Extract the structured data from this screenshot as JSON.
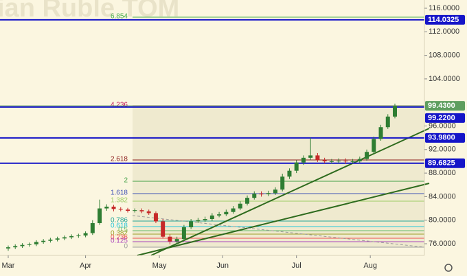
{
  "chart_data": {
    "type": "candlestick",
    "watermark": "ian Ruble TOM",
    "x": [
      0,
      2,
      4,
      6,
      8,
      10,
      12,
      14,
      16,
      18,
      20,
      22,
      24,
      26,
      28,
      30,
      32,
      34,
      36,
      38,
      40,
      42,
      44,
      46,
      48,
      50,
      52,
      54,
      56,
      58,
      60,
      62,
      64,
      66,
      68,
      70,
      72,
      74,
      76,
      78,
      80,
      82,
      84,
      86,
      88,
      90,
      92,
      94,
      96,
      98,
      100,
      102,
      104,
      106,
      108,
      110
    ],
    "open": [
      75.2,
      75.4,
      75.6,
      75.8,
      75.9,
      76.3,
      76.5,
      76.7,
      76.9,
      77.1,
      77.3,
      77.4,
      77.8,
      79.5,
      82.0,
      82.3,
      81.9,
      81.8,
      81.6,
      81.7,
      81.5,
      81.2,
      79.8,
      77.2,
      76.4,
      76.8,
      78.8,
      79.8,
      80.0,
      80.2,
      80.8,
      81.0,
      81.4,
      82.0,
      82.8,
      83.8,
      84.5,
      84.4,
      84.6,
      85.2,
      87.4,
      88.4,
      89.8,
      90.6,
      91.0,
      90.2,
      90.0,
      90.0,
      90.1,
      90.0,
      90.0,
      90.4,
      91.6,
      93.8,
      95.8,
      97.6
    ],
    "close": [
      75.4,
      75.6,
      75.8,
      75.9,
      76.3,
      76.5,
      76.7,
      76.9,
      77.1,
      77.3,
      77.4,
      77.8,
      79.5,
      82.0,
      82.3,
      81.9,
      81.8,
      81.6,
      81.7,
      81.5,
      81.2,
      79.8,
      77.2,
      76.4,
      76.8,
      78.8,
      79.8,
      80.0,
      80.2,
      80.8,
      81.0,
      81.4,
      82.0,
      82.8,
      83.8,
      84.5,
      84.4,
      84.6,
      85.2,
      87.4,
      88.4,
      89.8,
      90.6,
      91.0,
      90.2,
      90.0,
      90.0,
      90.1,
      90.0,
      90.0,
      90.4,
      91.6,
      93.8,
      95.8,
      97.6,
      99.4
    ],
    "high": [
      75.7,
      75.9,
      76.1,
      76.2,
      76.6,
      76.8,
      77.0,
      77.2,
      77.4,
      77.6,
      77.7,
      78.1,
      80.0,
      83.5,
      82.7,
      82.6,
      82.2,
      82.1,
      82.0,
      82.0,
      81.8,
      81.5,
      80.2,
      77.6,
      77.2,
      79.2,
      80.2,
      80.4,
      80.6,
      81.2,
      81.4,
      81.8,
      82.4,
      83.2,
      84.2,
      84.9,
      84.9,
      85.0,
      85.6,
      87.9,
      88.8,
      90.2,
      91.0,
      94.0,
      91.4,
      90.6,
      90.4,
      90.5,
      90.5,
      90.4,
      90.8,
      92.0,
      94.2,
      96.2,
      98.0,
      99.8
    ],
    "low": [
      74.8,
      75.1,
      75.3,
      75.5,
      75.6,
      76.0,
      76.2,
      76.4,
      76.6,
      76.8,
      77.0,
      77.1,
      77.5,
      79.2,
      81.6,
      81.5,
      81.5,
      81.3,
      81.3,
      81.2,
      80.9,
      79.5,
      76.9,
      75.9,
      76.0,
      76.5,
      78.5,
      79.5,
      79.7,
      79.9,
      80.5,
      80.7,
      81.1,
      81.7,
      82.5,
      83.5,
      84.0,
      84.1,
      84.3,
      84.9,
      87.0,
      88.0,
      89.4,
      90.2,
      89.9,
      89.7,
      89.6,
      89.7,
      89.6,
      89.6,
      89.7,
      90.1,
      91.3,
      93.5,
      95.5,
      97.3
    ],
    "up_color": "#2e7d32",
    "down_color": "#c62828",
    "xlim": [
      -2.34,
      118.4
    ],
    "ylim": [
      74.02,
      117.4
    ],
    "xticks": [
      {
        "value": 0,
        "label": "Mar"
      },
      {
        "value": 22,
        "label": "Apr"
      },
      {
        "value": 43,
        "label": "May"
      },
      {
        "value": 61,
        "label": "Jun"
      },
      {
        "value": 82,
        "label": "Jul"
      },
      {
        "value": 103,
        "label": "Aug"
      }
    ],
    "yticks": [
      {
        "value": 76,
        "label": "76.0000"
      },
      {
        "value": 80,
        "label": "80.0000"
      },
      {
        "value": 84,
        "label": "84.0000"
      },
      {
        "value": 88,
        "label": "88.0000"
      },
      {
        "value": 92,
        "label": "92.0000"
      },
      {
        "value": 96,
        "label": "96.0000"
      },
      {
        "value": 104,
        "label": "104.0000"
      },
      {
        "value": 108,
        "label": "108.0000"
      },
      {
        "value": 112,
        "label": "112.0000"
      },
      {
        "value": 116,
        "label": "116.0000"
      }
    ],
    "price_lines": [
      {
        "value": 114.0325,
        "label": "114.0325",
        "color": "#1515c8"
      },
      {
        "value": 99.43,
        "label": "99.4300",
        "color": "#5e9e5e"
      },
      {
        "value": 99.22,
        "label": "99.2200",
        "color": "#1515c8"
      },
      {
        "value": 93.98,
        "label": "93.9800",
        "color": "#1515c8"
      },
      {
        "value": 89.6825,
        "label": "89.6825",
        "color": "#1515c8"
      }
    ],
    "fib_levels": [
      {
        "label": "6.854",
        "value": 114.48,
        "color": "#4caf50"
      },
      {
        "label": "4.236",
        "value": 99.44,
        "color": "#c2185b"
      },
      {
        "label": "2.618",
        "value": 90.23,
        "color": "#8b1a1a"
      },
      {
        "label": "2",
        "value": 86.62,
        "color": "#43a047"
      },
      {
        "label": "1.618",
        "value": 84.51,
        "color": "#3f51b5"
      },
      {
        "label": "1.382",
        "value": 83.23,
        "color": "#9ccc65"
      },
      {
        "label": "0.786",
        "value": 79.85,
        "color": "#26a69a"
      },
      {
        "label": "0.618",
        "value": 78.92,
        "color": "#26c6da"
      },
      {
        "label": "0.5",
        "value": 78.22,
        "color": "#66bb6a"
      },
      {
        "label": "0.382",
        "value": 77.63,
        "color": "#9e9d24"
      },
      {
        "label": "0.236",
        "value": 76.93,
        "color": "#ef5350"
      },
      {
        "label": "0.125",
        "value": 76.35,
        "color": "#ab47bc"
      },
      {
        "label": "0",
        "value": 75.42,
        "color": "#9e9e9e"
      }
    ]
  }
}
